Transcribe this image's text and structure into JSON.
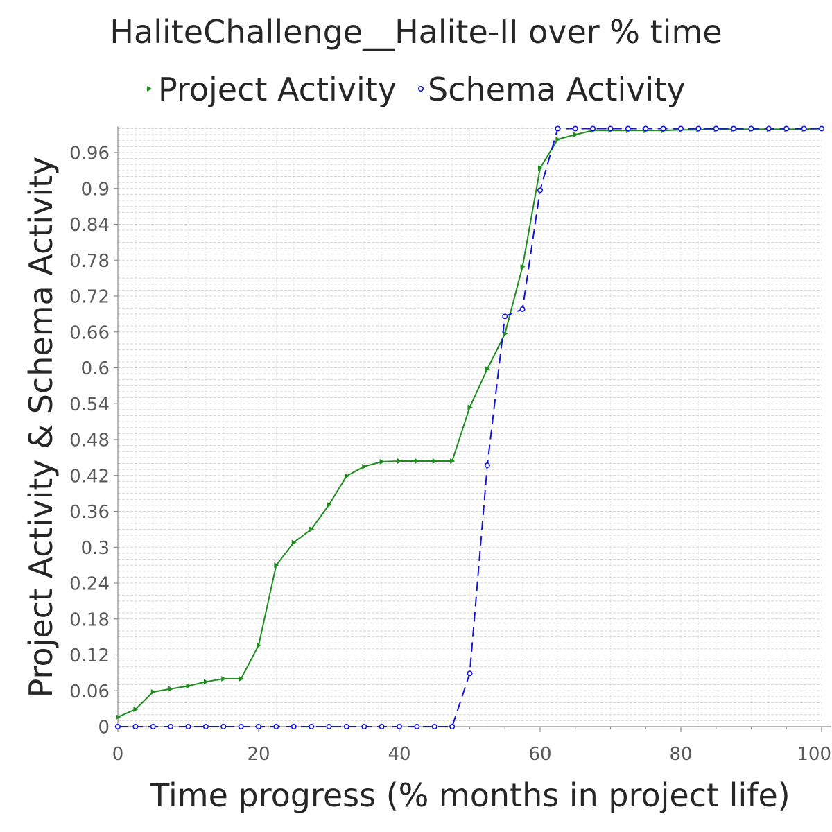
{
  "chart_data": {
    "type": "line",
    "title": "HaliteChallenge__Halite-II over % time",
    "xlabel": "Time progress (% months in project life)",
    "ylabel": "Project Activity & Schema Activity",
    "xlim": [
      0,
      100
    ],
    "ylim": [
      0,
      1.0
    ],
    "xticks": [
      "0",
      "20",
      "40",
      "60",
      "80",
      "100"
    ],
    "yticks": [
      "0",
      "0.06",
      "0.12",
      "0.18",
      "0.24",
      "0.3",
      "0.36",
      "0.42",
      "0.48",
      "0.54",
      "0.6",
      "0.66",
      "0.72",
      "0.78",
      "0.84",
      "0.9",
      "0.96"
    ],
    "grid": true,
    "legend_position": "top",
    "x": [
      0,
      2.5,
      5,
      7.5,
      10,
      12.5,
      15,
      17.5,
      20,
      22.5,
      25,
      27.5,
      30,
      32.5,
      35,
      37.5,
      40,
      42.5,
      45,
      47.5,
      50,
      52.5,
      55,
      57.5,
      60,
      62.5,
      65,
      67.5,
      70,
      72.5,
      75,
      77.5,
      80,
      82.5,
      85,
      87.5,
      90,
      92.5,
      95,
      97.5,
      100
    ],
    "series": [
      {
        "name": "Project Activity",
        "color": "#1e8c1e",
        "marker": "triangle",
        "line_style": "solid",
        "values": [
          0.016,
          0.029,
          0.058,
          0.063,
          0.068,
          0.075,
          0.08,
          0.08,
          0.136,
          0.27,
          0.308,
          0.33,
          0.371,
          0.419,
          0.435,
          0.443,
          0.444,
          0.444,
          0.444,
          0.444,
          0.534,
          0.598,
          0.657,
          0.769,
          0.934,
          0.982,
          0.99,
          0.997,
          0.997,
          0.997,
          0.997,
          0.997,
          0.998,
          0.998,
          0.999,
          0.999,
          0.999,
          0.999,
          0.999,
          0.999,
          1.0
        ]
      },
      {
        "name": "Schema Activity",
        "color": "#1414e0",
        "marker": "circle",
        "line_style": "dashed",
        "values": [
          0,
          0,
          0,
          0,
          0,
          0,
          0,
          0,
          0,
          0,
          0,
          0,
          0,
          0,
          0,
          0,
          0,
          0,
          0,
          0,
          0.089,
          0.437,
          0.686,
          0.698,
          0.897,
          1.0,
          1.0,
          1.0,
          1.0,
          1.0,
          1.0,
          1.0,
          1.0,
          1.0,
          1.0,
          1.0,
          1.0,
          1.0,
          1.0,
          1.0,
          1.0
        ]
      }
    ]
  }
}
